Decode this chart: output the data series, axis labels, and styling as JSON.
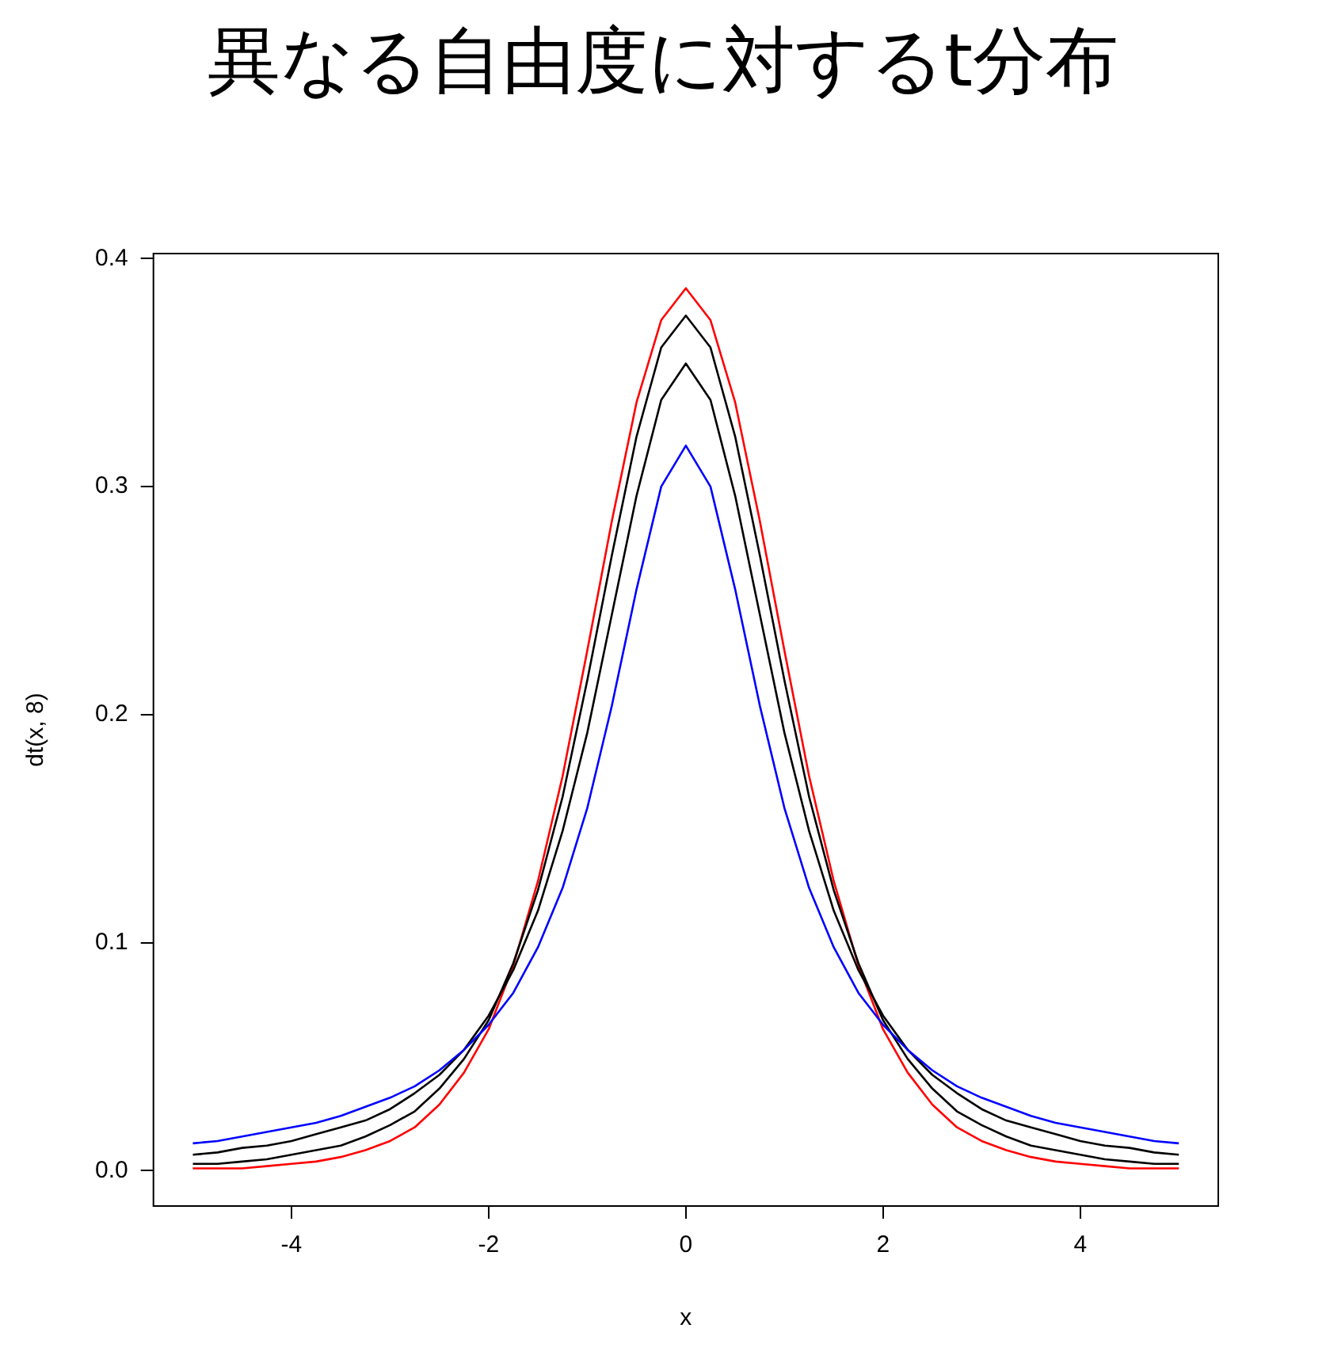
{
  "chart_data": {
    "type": "line",
    "title": "異なる自由度に対するt分布",
    "xlabel": "x",
    "ylabel": "dt(x, 8)",
    "x": [
      -5,
      -4.75,
      -4.5,
      -4.25,
      -4,
      -3.75,
      -3.5,
      -3.25,
      -3,
      -2.75,
      -2.5,
      -2.25,
      -2,
      -1.75,
      -1.5,
      -1.25,
      -1,
      -0.75,
      -0.5,
      -0.25,
      0,
      0.25,
      0.5,
      0.75,
      1,
      1.25,
      1.5,
      1.75,
      2,
      2.25,
      2.5,
      2.75,
      3,
      3.25,
      3.5,
      3.75,
      4,
      4.25,
      4.5,
      4.75,
      5
    ],
    "series": [
      {
        "color": "#0000ff",
        "values": [
          0.012,
          0.013,
          0.015,
          0.017,
          0.019,
          0.021,
          0.024,
          0.028,
          0.032,
          0.037,
          0.044,
          0.053,
          0.064,
          0.078,
          0.098,
          0.124,
          0.159,
          0.204,
          0.255,
          0.3,
          0.318,
          0.3,
          0.255,
          0.204,
          0.159,
          0.124,
          0.098,
          0.078,
          0.064,
          0.053,
          0.044,
          0.037,
          0.032,
          0.028,
          0.024,
          0.021,
          0.019,
          0.017,
          0.015,
          0.013,
          0.012
        ]
      },
      {
        "color": "#000000",
        "values": [
          0.007,
          0.008,
          0.01,
          0.011,
          0.013,
          0.016,
          0.019,
          0.022,
          0.027,
          0.034,
          0.042,
          0.053,
          0.068,
          0.088,
          0.114,
          0.149,
          0.192,
          0.244,
          0.296,
          0.338,
          0.354,
          0.338,
          0.296,
          0.244,
          0.192,
          0.149,
          0.114,
          0.088,
          0.068,
          0.053,
          0.042,
          0.034,
          0.027,
          0.022,
          0.019,
          0.016,
          0.013,
          0.011,
          0.01,
          0.008,
          0.007
        ]
      },
      {
        "color": "#000000",
        "values": [
          0.003,
          0.003,
          0.004,
          0.005,
          0.007,
          0.009,
          0.011,
          0.015,
          0.02,
          0.026,
          0.036,
          0.049,
          0.066,
          0.091,
          0.123,
          0.164,
          0.215,
          0.27,
          0.322,
          0.361,
          0.375,
          0.361,
          0.322,
          0.27,
          0.215,
          0.164,
          0.123,
          0.091,
          0.066,
          0.049,
          0.036,
          0.026,
          0.02,
          0.015,
          0.011,
          0.009,
          0.007,
          0.005,
          0.004,
          0.003,
          0.003
        ]
      },
      {
        "color": "#ff0000",
        "values": [
          0.001,
          0.001,
          0.001,
          0.002,
          0.003,
          0.004,
          0.006,
          0.009,
          0.013,
          0.019,
          0.029,
          0.043,
          0.062,
          0.09,
          0.127,
          0.173,
          0.228,
          0.285,
          0.337,
          0.373,
          0.387,
          0.373,
          0.337,
          0.285,
          0.228,
          0.173,
          0.127,
          0.09,
          0.062,
          0.043,
          0.029,
          0.019,
          0.013,
          0.009,
          0.006,
          0.004,
          0.003,
          0.002,
          0.001,
          0.001,
          0.001
        ]
      }
    ],
    "xlim": [
      -5.4,
      5.4
    ],
    "xticks": [
      -4,
      -2,
      0,
      2,
      4
    ],
    "ylim": [
      -0.0155,
      0.4022
    ],
    "yticks": [
      {
        "value": 0,
        "label": "0.0"
      },
      {
        "value": 0.1,
        "label": "0.1"
      },
      {
        "value": 0.2,
        "label": "0.2"
      },
      {
        "value": 0.3,
        "label": "0.3"
      },
      {
        "value": 0.4,
        "label": "0.4"
      }
    ],
    "legend": false,
    "grid": false,
    "marker": "none",
    "line_style": "solid"
  }
}
